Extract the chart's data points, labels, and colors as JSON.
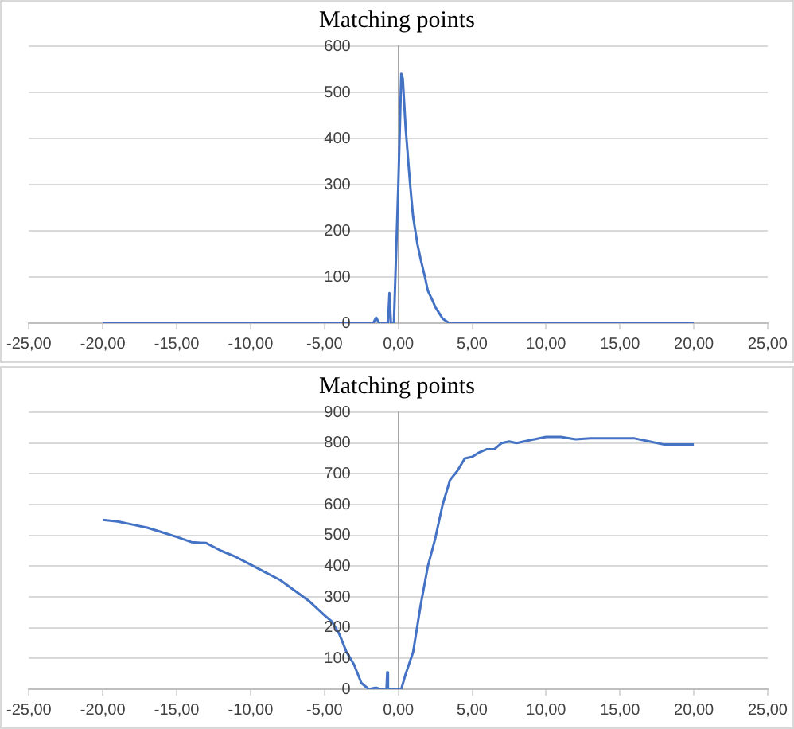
{
  "chart_data": [
    {
      "type": "line",
      "title": "Matching points",
      "marker": "none",
      "grid": "y",
      "legend": false,
      "xlim": [
        -25,
        25
      ],
      "xticks": [
        {
          "value": -25,
          "label": "-25,00"
        },
        {
          "value": -20,
          "label": "-20,00"
        },
        {
          "value": -15,
          "label": "-15,00"
        },
        {
          "value": -10,
          "label": "-10,00"
        },
        {
          "value": -5,
          "label": "-5,00"
        },
        {
          "value": 0,
          "label": "0,00"
        },
        {
          "value": 5,
          "label": "5,00"
        },
        {
          "value": 10,
          "label": "10,00"
        },
        {
          "value": 15,
          "label": "15,00"
        },
        {
          "value": 20,
          "label": "20,00"
        },
        {
          "value": 25,
          "label": "25,00"
        }
      ],
      "ylim": [
        0,
        600
      ],
      "yticks": [
        0,
        100,
        200,
        300,
        400,
        500,
        600
      ],
      "series": [
        {
          "color": "#4472c4",
          "x": [
            -20,
            -10,
            -1.7,
            -1.5,
            -1.3,
            -0.7,
            -0.6,
            -0.5,
            -0.3,
            0,
            0.2,
            0.3,
            0.5,
            0.8,
            1,
            1.3,
            1.5,
            1.8,
            2,
            2.3,
            2.5,
            2.8,
            3,
            3.3,
            3.5,
            5,
            10,
            20
          ],
          "values": [
            0,
            0,
            0,
            12,
            0,
            0,
            65,
            0,
            0,
            300,
            540,
            530,
            420,
            300,
            230,
            170,
            140,
            100,
            70,
            50,
            35,
            20,
            10,
            3,
            0,
            0,
            0,
            0
          ]
        }
      ]
    },
    {
      "type": "line",
      "title": "Matching points",
      "marker": "none",
      "grid": "y",
      "legend": false,
      "xlim": [
        -25,
        25
      ],
      "xticks": [
        {
          "value": -25,
          "label": "-25,00"
        },
        {
          "value": -20,
          "label": "-20,00"
        },
        {
          "value": -15,
          "label": "-15,00"
        },
        {
          "value": -10,
          "label": "-10,00"
        },
        {
          "value": -5,
          "label": "-5,00"
        },
        {
          "value": 0,
          "label": "0,00"
        },
        {
          "value": 5,
          "label": "5,00"
        },
        {
          "value": 10,
          "label": "10,00"
        },
        {
          "value": 15,
          "label": "15,00"
        },
        {
          "value": 20,
          "label": "20,00"
        },
        {
          "value": 25,
          "label": "25,00"
        }
      ],
      "ylim": [
        0,
        900
      ],
      "yticks": [
        0,
        100,
        200,
        300,
        400,
        500,
        600,
        700,
        800,
        900
      ],
      "series": [
        {
          "color": "#4472c4",
          "x": [
            -20,
            -19,
            -18,
            -17,
            -16,
            -15,
            -14,
            -13,
            -12,
            -11,
            -10,
            -9,
            -8,
            -7,
            -6,
            -5,
            -4.5,
            -4,
            -3.5,
            -3,
            -2.5,
            -2,
            -1.5,
            -1.2,
            -0.8,
            -0.75,
            -0.7,
            -0.5,
            0,
            0.2,
            0.5,
            1,
            1.5,
            2,
            2.5,
            3,
            3.5,
            4,
            4.5,
            5,
            5.5,
            6,
            6.5,
            7,
            7.5,
            8,
            9,
            10,
            11,
            12,
            13,
            14,
            15,
            16,
            17,
            18,
            19,
            20
          ],
          "values": [
            550,
            545,
            535,
            525,
            510,
            495,
            478,
            475,
            450,
            430,
            405,
            380,
            355,
            320,
            285,
            240,
            220,
            180,
            120,
            80,
            20,
            0,
            5,
            0,
            0,
            55,
            5,
            0,
            0,
            0,
            50,
            120,
            270,
            400,
            490,
            600,
            680,
            710,
            750,
            755,
            770,
            780,
            780,
            800,
            805,
            800,
            810,
            820,
            820,
            812,
            815,
            815,
            815,
            815,
            805,
            795,
            795,
            795
          ]
        }
      ]
    }
  ]
}
